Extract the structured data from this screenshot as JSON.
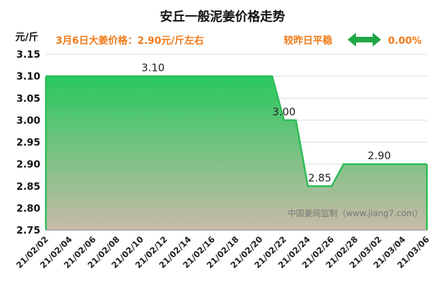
{
  "header": {
    "title": "安丘一般泥姜价格走势",
    "price_note": "3月6日大姜价格：2.90元/斤左右",
    "trend_text": "较昨日平稳",
    "trend_percent": "0.00%"
  },
  "watermark": "中国姜网监制（www.jiang7.com）",
  "colors": {
    "line": "#2bbd55",
    "fill_top": "#28c95e",
    "fill_bottom": "#c8bba8",
    "accent": "#f07a18",
    "arrow": "#1fa646"
  },
  "chart_data": {
    "type": "area",
    "ylabel": "元/斤",
    "ylim": [
      2.75,
      3.15
    ],
    "yticks": [
      "3.15",
      "3.10",
      "3.05",
      "3.00",
      "2.95",
      "2.90",
      "2.85",
      "2.80",
      "2.75"
    ],
    "x_ticks": [
      "21/02/02",
      "21/02/04",
      "21/02/06",
      "21/02/08",
      "21/02/10",
      "21/02/12",
      "21/02/14",
      "21/02/16",
      "21/02/18",
      "21/02/20",
      "21/02/22",
      "21/02/24",
      "21/02/26",
      "21/02/28",
      "21/03/02",
      "21/03/04",
      "21/03/06"
    ],
    "x": [
      "21/02/02",
      "21/02/21",
      "21/02/22",
      "21/02/23",
      "21/02/24",
      "21/02/25",
      "21/02/26",
      "21/02/27",
      "21/03/06"
    ],
    "values": [
      3.1,
      3.1,
      3.0,
      3.0,
      2.85,
      2.85,
      2.85,
      2.9,
      2.9
    ],
    "data_labels": [
      {
        "date": "21/02/11",
        "value": 3.1,
        "text": "3.10"
      },
      {
        "date": "21/02/22",
        "value": 3.0,
        "text": "3.00"
      },
      {
        "date": "21/02/25",
        "value": 2.85,
        "text": "2.85"
      },
      {
        "date": "21/03/02",
        "value": 2.9,
        "text": "2.90"
      }
    ],
    "grid": true
  }
}
